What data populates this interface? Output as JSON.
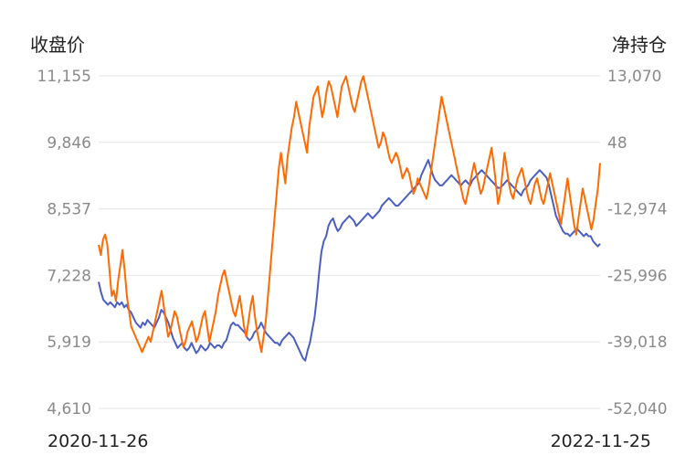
{
  "chart_data": {
    "type": "line",
    "left_axis_title": "收盘价",
    "right_axis_title": "净持仓",
    "y_left_ticks": [
      "11,155",
      "9,846",
      "8,537",
      "7,228",
      "5,919",
      "4,610"
    ],
    "y_right_ticks": [
      "13,070",
      "48",
      "-12,974",
      "-25,996",
      "-39,018",
      "-52,040"
    ],
    "ylim_left": [
      4610,
      11155
    ],
    "ylim_right": [
      -52040,
      13070
    ],
    "x_start_label": "2020-11-26",
    "x_end_label": "2022-11-25",
    "grid": true,
    "series": [
      {
        "axis": "left",
        "color": "#4a5fc1",
        "values": [
          7100,
          6900,
          6750,
          6700,
          6650,
          6700,
          6650,
          6600,
          6700,
          6650,
          6700,
          6600,
          6650,
          6550,
          6500,
          6400,
          6300,
          6250,
          6200,
          6300,
          6250,
          6350,
          6300,
          6250,
          6200,
          6300,
          6400,
          6550,
          6500,
          6400,
          6300,
          6150,
          6000,
          5900,
          5800,
          5850,
          5900,
          5800,
          5750,
          5800,
          5900,
          5800,
          5700,
          5750,
          5850,
          5800,
          5750,
          5800,
          5900,
          5850,
          5800,
          5850,
          5850,
          5800,
          5900,
          5950,
          6100,
          6250,
          6300,
          6250,
          6250,
          6200,
          6150,
          6100,
          6000,
          5950,
          6000,
          6100,
          6150,
          6200,
          6300,
          6200,
          6100,
          6050,
          6000,
          5950,
          5900,
          5900,
          5850,
          5950,
          6000,
          6050,
          6100,
          6050,
          6000,
          5900,
          5800,
          5700,
          5600,
          5550,
          5750,
          5900,
          6150,
          6400,
          6800,
          7300,
          7700,
          7900,
          8000,
          8200,
          8300,
          8350,
          8200,
          8100,
          8150,
          8250,
          8300,
          8350,
          8400,
          8350,
          8300,
          8200,
          8250,
          8300,
          8350,
          8400,
          8450,
          8400,
          8350,
          8400,
          8450,
          8500,
          8600,
          8650,
          8700,
          8750,
          8700,
          8650,
          8600,
          8600,
          8650,
          8700,
          8750,
          8800,
          8850,
          8900,
          8950,
          9000,
          9050,
          9200,
          9300,
          9400,
          9500,
          9350,
          9200,
          9100,
          9050,
          9000,
          9000,
          9050,
          9100,
          9150,
          9200,
          9150,
          9100,
          9050,
          9000,
          9050,
          9100,
          9050,
          9000,
          9100,
          9150,
          9200,
          9250,
          9300,
          9250,
          9200,
          9150,
          9100,
          9050,
          9000,
          8950,
          8950,
          9000,
          9050,
          9100,
          9050,
          9000,
          8950,
          8900,
          8850,
          8800,
          8900,
          8950,
          9000,
          9100,
          9150,
          9200,
          9250,
          9300,
          9250,
          9200,
          9150,
          9000,
          8800,
          8600,
          8400,
          8300,
          8200,
          8100,
          8050,
          8050,
          8000,
          8050,
          8100,
          8150,
          8100,
          8050,
          8000,
          8050,
          8000,
          8000,
          7900,
          7850,
          7800,
          7850
        ]
      },
      {
        "axis": "right",
        "color": "#ff6a00",
        "values": [
          -20000,
          -22000,
          -19000,
          -18000,
          -20000,
          -25000,
          -30000,
          -29000,
          -31000,
          -27000,
          -24000,
          -21000,
          -25000,
          -30000,
          -33000,
          -36000,
          -37000,
          -38000,
          -39000,
          -40000,
          -41000,
          -40000,
          -39000,
          -38000,
          -39000,
          -37000,
          -35000,
          -33000,
          -31000,
          -29000,
          -32000,
          -35000,
          -38000,
          -37000,
          -35000,
          -33000,
          -34000,
          -36000,
          -38000,
          -40000,
          -39000,
          -37000,
          -36000,
          -35000,
          -37000,
          -39000,
          -38000,
          -36000,
          -34000,
          -33000,
          -36000,
          -39000,
          -37000,
          -35000,
          -33000,
          -30000,
          -28000,
          -26000,
          -25000,
          -27000,
          -29000,
          -31000,
          -33000,
          -34000,
          -32000,
          -30000,
          -33000,
          -36000,
          -38000,
          -35000,
          -32000,
          -30000,
          -34000,
          -37000,
          -39000,
          -41000,
          -38000,
          -35000,
          -30000,
          -25000,
          -20000,
          -15000,
          -10000,
          -5000,
          -2000,
          -5000,
          -8000,
          -3000,
          0,
          3000,
          5000,
          8000,
          6000,
          4000,
          2000,
          0,
          -2000,
          3000,
          6000,
          9000,
          10000,
          11000,
          8000,
          5000,
          7000,
          10000,
          12000,
          11000,
          9000,
          7000,
          5000,
          8000,
          11000,
          12000,
          13000,
          11000,
          9000,
          7000,
          6000,
          8000,
          10000,
          12000,
          13000,
          11000,
          9000,
          7000,
          5000,
          3000,
          1000,
          -1000,
          0,
          2000,
          1000,
          -1000,
          -3000,
          -4000,
          -3000,
          -2000,
          -3000,
          -5000,
          -7000,
          -6000,
          -5000,
          -6000,
          -8000,
          -10000,
          -9000,
          -7000,
          -8000,
          -9000,
          -10000,
          -11000,
          -9000,
          -6000,
          -3000,
          0,
          3000,
          6000,
          9000,
          7000,
          5000,
          3000,
          1000,
          -1000,
          -3000,
          -5000,
          -7000,
          -9000,
          -11000,
          -12000,
          -10000,
          -8000,
          -6000,
          -4000,
          -6000,
          -8000,
          -10000,
          -9000,
          -7000,
          -5000,
          -3000,
          -1000,
          -4000,
          -8000,
          -12000,
          -10000,
          -6000,
          -2000,
          -5000,
          -8000,
          -10000,
          -11000,
          -9000,
          -7000,
          -6000,
          -5000,
          -7000,
          -9000,
          -11000,
          -12000,
          -10000,
          -8000,
          -7000,
          -9000,
          -11000,
          -12000,
          -10000,
          -8000,
          -6000,
          -8000,
          -10000,
          -12000,
          -14000,
          -16000,
          -13000,
          -10000,
          -7000,
          -10000,
          -13000,
          -16000,
          -18000,
          -15000,
          -12000,
          -9000,
          -11000,
          -13000,
          -15000,
          -17000,
          -15000,
          -12000,
          -9000,
          -4000
        ]
      }
    ]
  }
}
